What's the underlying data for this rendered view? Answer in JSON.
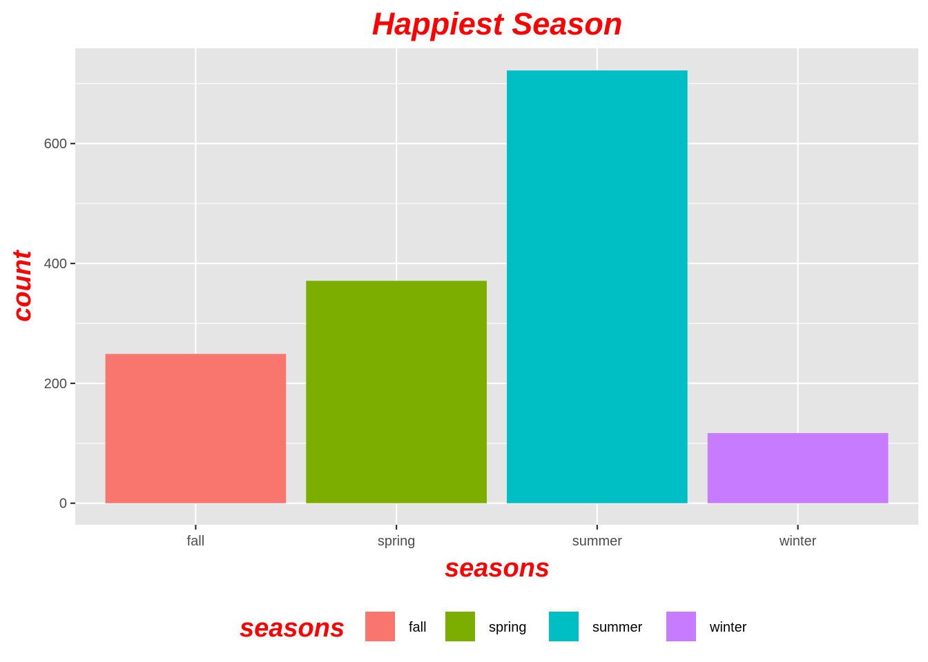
{
  "chart_data": {
    "type": "bar",
    "title": "Happiest Season",
    "xlabel": "seasons",
    "ylabel": "count",
    "categories": [
      "fall",
      "spring",
      "summer",
      "winter"
    ],
    "values": [
      249,
      371,
      722,
      117
    ],
    "colors": [
      "#F8766D",
      "#7CAE00",
      "#00BFC4",
      "#C77CFF"
    ],
    "ylim": [
      -36,
      759
    ],
    "yticks": [
      0,
      200,
      400,
      600
    ],
    "grid": true,
    "legend": {
      "title": "seasons",
      "position": "bottom",
      "items": [
        "fall",
        "spring",
        "summer",
        "winter"
      ]
    },
    "theme": {
      "panel_background": "#E5E5E5",
      "grid_color": "#FFFFFF",
      "title_color": "#FF0000",
      "tick_color": "#4D4D4D"
    }
  }
}
